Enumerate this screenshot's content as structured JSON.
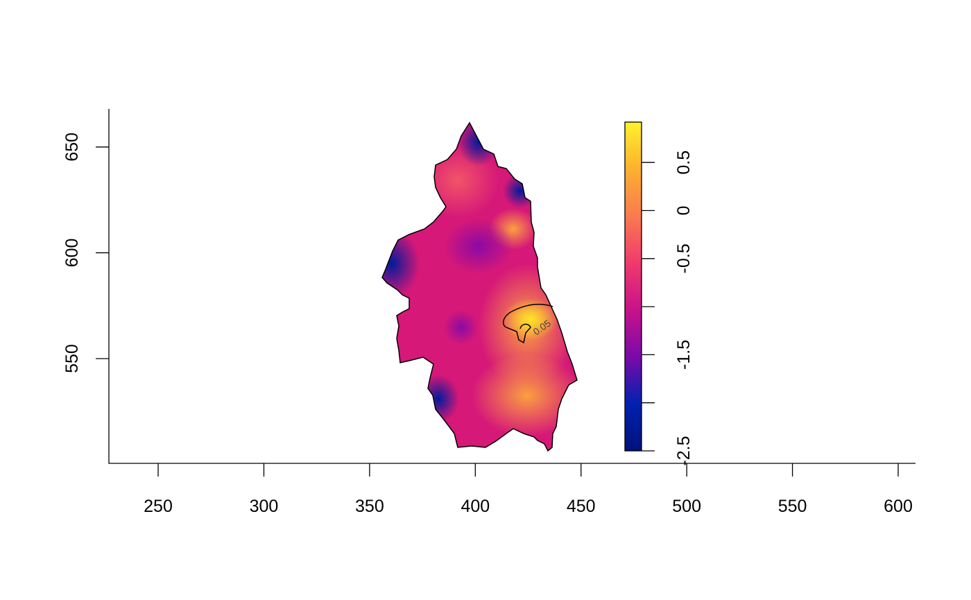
{
  "chart_data": {
    "type": "raster-map",
    "xlim": [
      226.7,
      608.2
    ],
    "ylim": [
      500.5,
      668
    ],
    "xticks": [
      250,
      300,
      350,
      400,
      450,
      500,
      550,
      600
    ],
    "yticks": [
      550,
      600,
      650
    ],
    "colorbar_lim": [
      -2.5,
      0.92
    ],
    "colorbar_ticks": [
      -2.5,
      -2,
      -1.5,
      -1,
      -0.5,
      0,
      0.5
    ],
    "colorbar_labels": [
      -2.5,
      -1.5,
      -0.5,
      0,
      0.5
    ],
    "colorbar_colors": [
      "#00127a",
      "#0021b0",
      "#7a0aa8",
      "#c8128a",
      "#f03a6c",
      "#fa7a50",
      "#fcb030",
      "#fff22a"
    ],
    "contour_levels": [
      0.05
    ]
  }
}
